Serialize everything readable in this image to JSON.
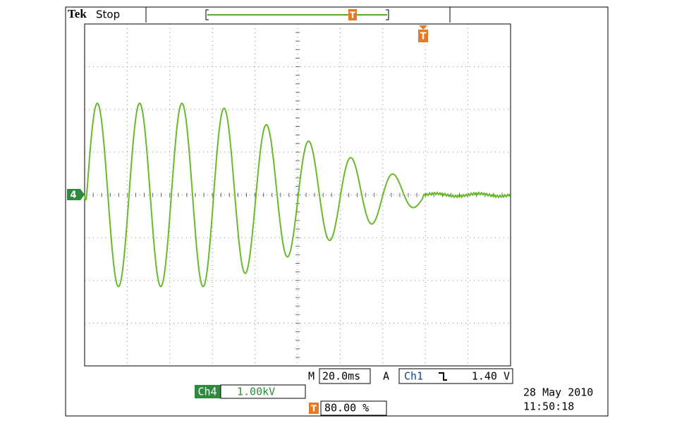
{
  "header": {
    "brand": "Tek",
    "state": "Stop",
    "trigger_marker": "T"
  },
  "display": {
    "channel_marker": "4",
    "trigger_marker": "T"
  },
  "readout": {
    "timebase_prefix": "M",
    "timebase": "20.0ms",
    "trigger_mode": "A",
    "trigger_source": "Ch1",
    "trigger_level": "1.40 V",
    "channel": "Ch4",
    "channel_scale": "1.00kV",
    "position_marker": "T",
    "trigger_position": "80.00 %",
    "date": "28 May 2010",
    "time": "11:50:18"
  }
}
